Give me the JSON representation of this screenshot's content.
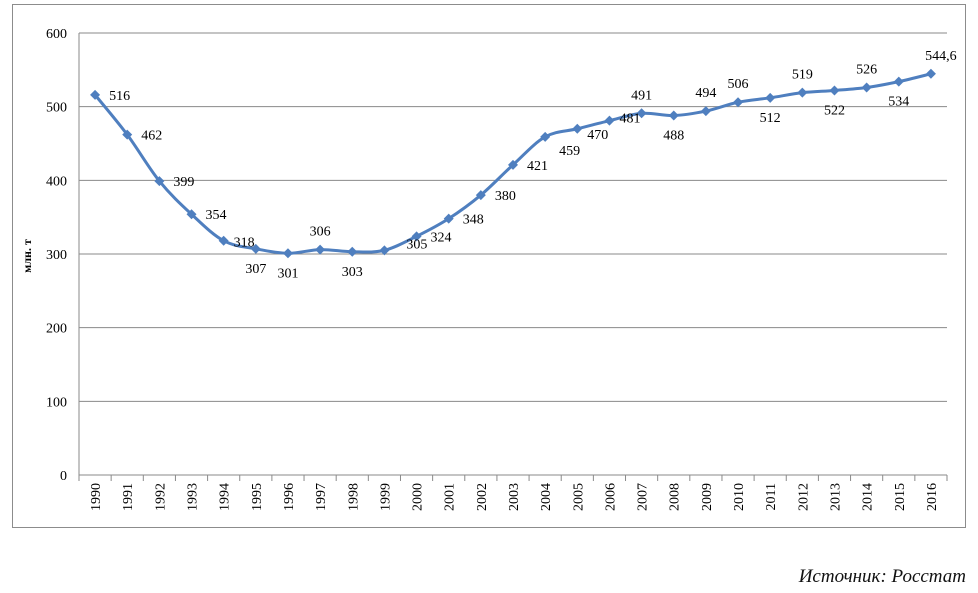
{
  "chart_data": {
    "type": "line",
    "title": "",
    "xlabel": "",
    "ylabel": "млн. т",
    "ylim": [
      0,
      600
    ],
    "yticks": [
      0,
      100,
      200,
      300,
      400,
      500,
      600
    ],
    "grid": true,
    "legend": "none",
    "line_color": "#4f7fbf",
    "categories": [
      "1990",
      "1991",
      "1992",
      "1993",
      "1994",
      "1995",
      "1996",
      "1997",
      "1998",
      "1999",
      "2000",
      "2001",
      "2002",
      "2003",
      "2004",
      "2005",
      "2006",
      "2007",
      "2008",
      "2009",
      "2010",
      "2011",
      "2012",
      "2013",
      "2014",
      "2015",
      "2016"
    ],
    "series": [
      {
        "values": [
          516,
          462,
          399,
          354,
          318,
          307,
          301,
          306,
          303,
          305,
          324,
          348,
          380,
          421,
          459,
          470,
          481,
          491,
          488,
          494,
          506,
          512,
          519,
          522,
          526,
          534,
          544.6
        ],
        "data_labels": [
          "516",
          "462",
          "399",
          "354",
          "318",
          "307",
          "301",
          "306",
          "303",
          "305",
          "324",
          "348",
          "380",
          "421",
          "459",
          "470",
          "481",
          "491",
          "488",
          "494",
          "506",
          "512",
          "519",
          "522",
          "526",
          "534",
          "544,6"
        ]
      }
    ]
  },
  "source_note": "Источник: Росстат"
}
